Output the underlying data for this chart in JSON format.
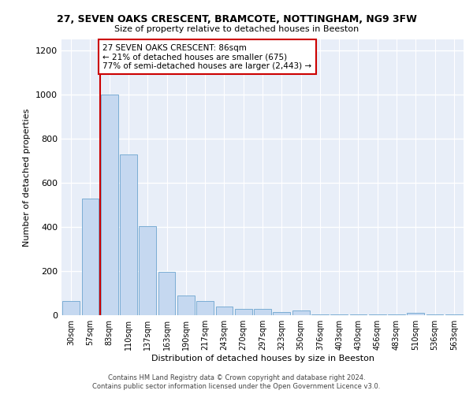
{
  "title_line1": "27, SEVEN OAKS CRESCENT, BRAMCOTE, NOTTINGHAM, NG9 3FW",
  "title_line2": "Size of property relative to detached houses in Beeston",
  "xlabel": "Distribution of detached houses by size in Beeston",
  "ylabel": "Number of detached properties",
  "footer_line1": "Contains HM Land Registry data © Crown copyright and database right 2024.",
  "footer_line2": "Contains public sector information licensed under the Open Government Licence v3.0.",
  "categories": [
    "30sqm",
    "57sqm",
    "83sqm",
    "110sqm",
    "137sqm",
    "163sqm",
    "190sqm",
    "217sqm",
    "243sqm",
    "270sqm",
    "297sqm",
    "323sqm",
    "350sqm",
    "376sqm",
    "403sqm",
    "430sqm",
    "456sqm",
    "483sqm",
    "510sqm",
    "536sqm",
    "563sqm"
  ],
  "values": [
    65,
    530,
    1000,
    730,
    405,
    195,
    90,
    65,
    40,
    30,
    30,
    15,
    20,
    5,
    5,
    5,
    5,
    5,
    10,
    5,
    5
  ],
  "bar_color": "#c5d8f0",
  "bar_edgecolor": "#7badd4",
  "marker_index": 2,
  "marker_color": "#cc0000",
  "ylim": [
    0,
    1250
  ],
  "yticks": [
    0,
    200,
    400,
    600,
    800,
    1000,
    1200
  ],
  "annotation_text": "27 SEVEN OAKS CRESCENT: 86sqm\n← 21% of detached houses are smaller (675)\n77% of semi-detached houses are larger (2,443) →",
  "annotation_box_edgecolor": "#cc0000",
  "background_color": "#e8eef8",
  "grid_color": "#ffffff"
}
